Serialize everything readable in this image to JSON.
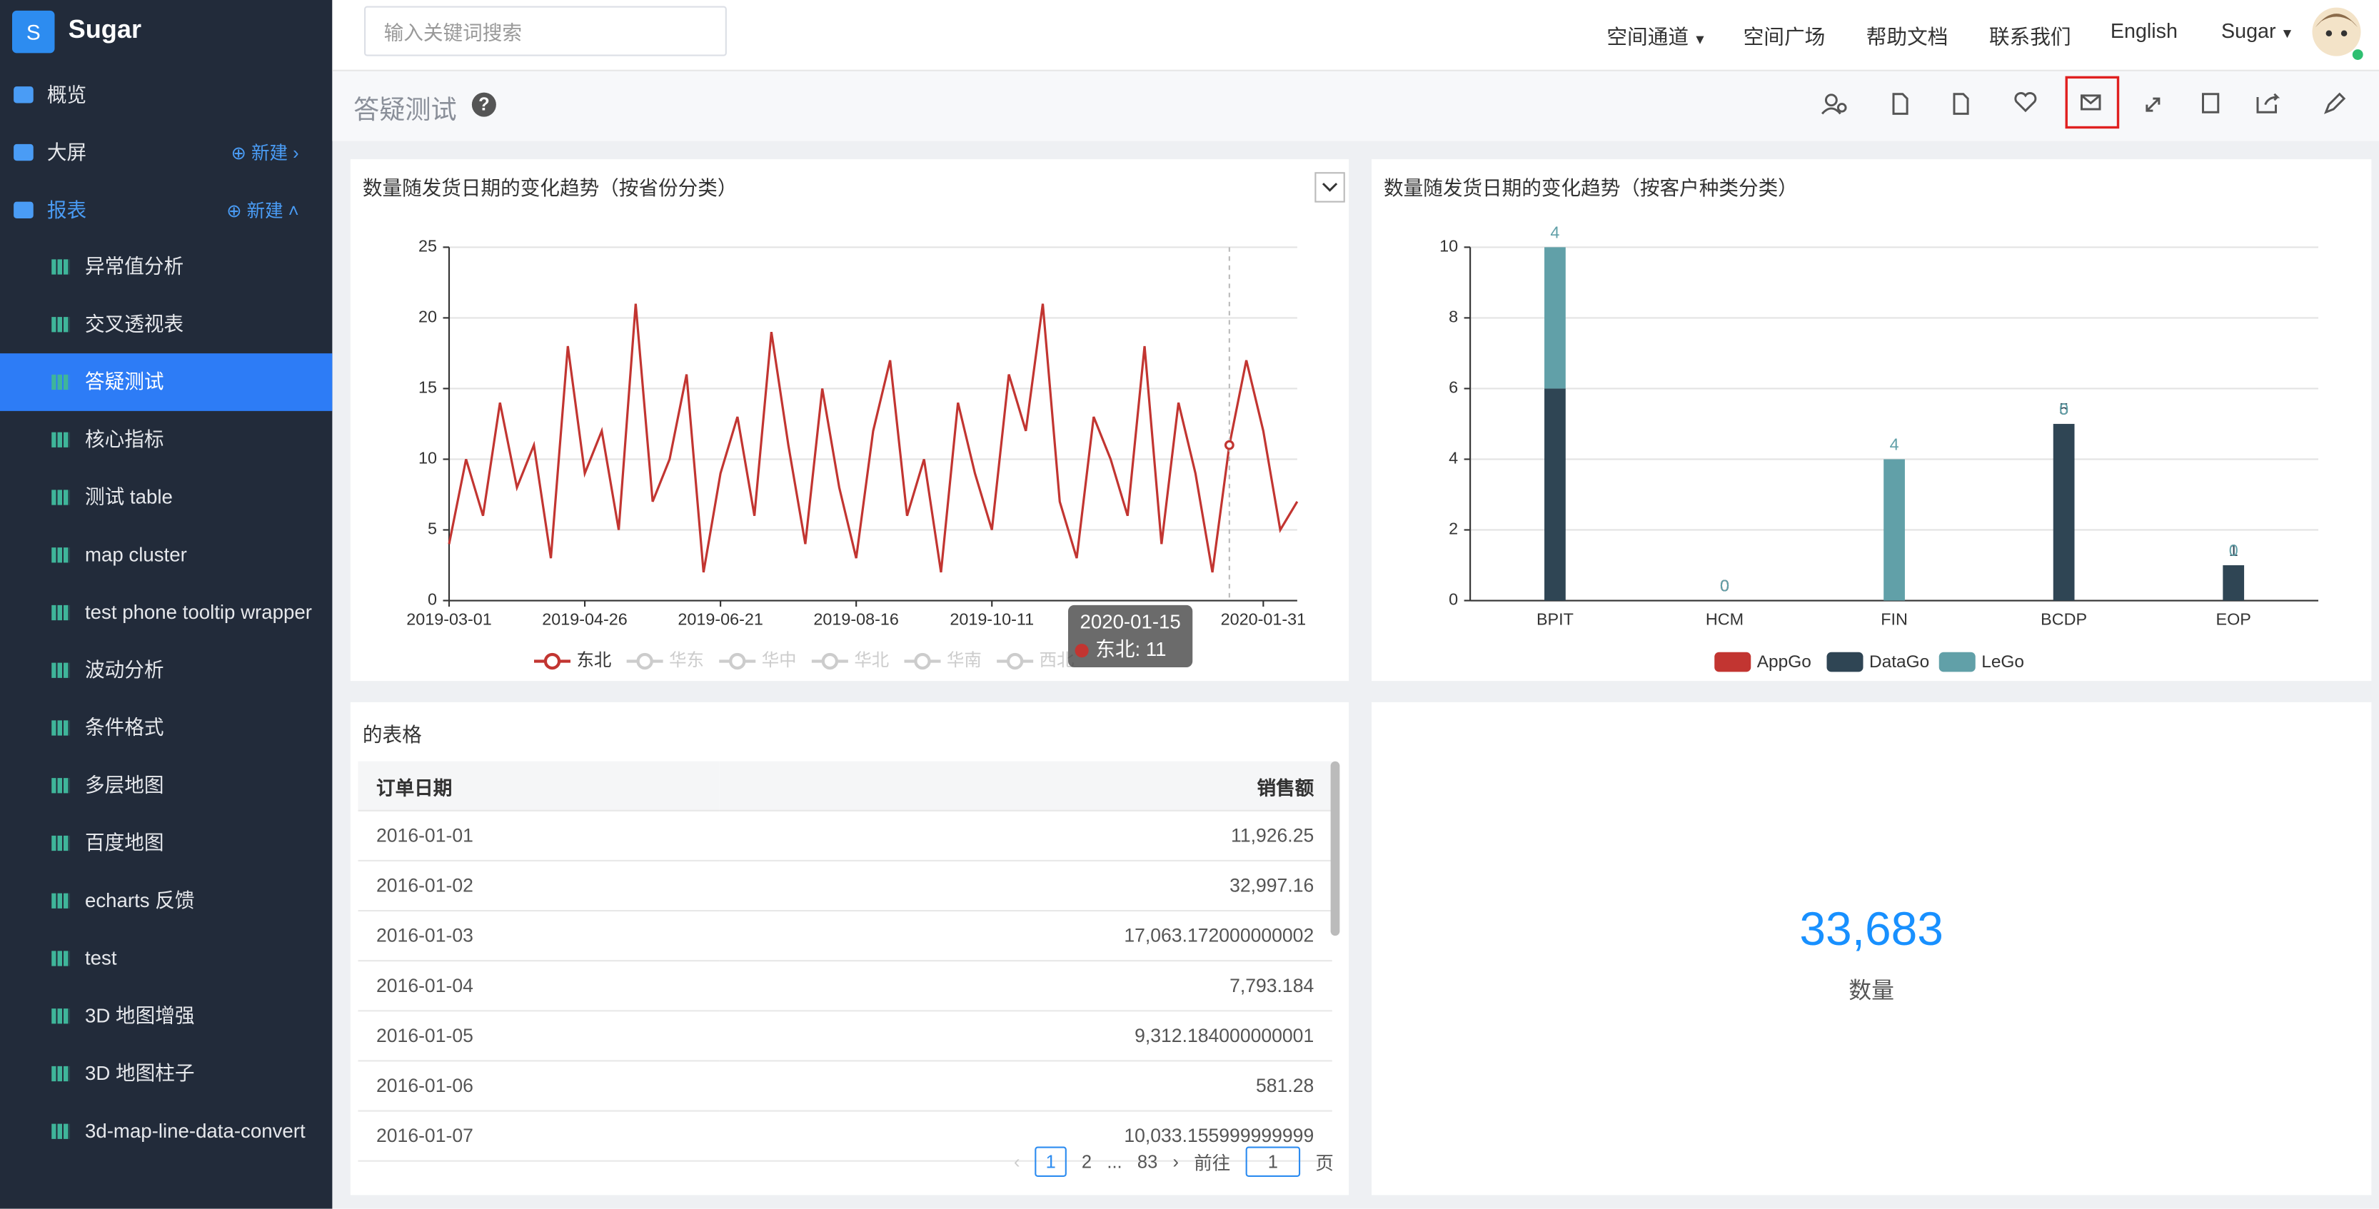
{
  "header": {
    "brand_letter": "S",
    "brand": "Sugar",
    "search_placeholder": "输入关键词搜索",
    "nav": [
      "空间通道",
      "空间广场",
      "帮助文档",
      "联系我们",
      "English",
      "Sugar"
    ]
  },
  "sidebar": {
    "top": [
      "概览",
      "大屏",
      "报表"
    ],
    "new_actions": [
      "新建",
      "新建"
    ],
    "reports": [
      "异常值分析",
      "交叉透视表",
      "答疑测试",
      "核心指标",
      "测试 table",
      "map cluster",
      "test phone tooltip wrapper",
      "波动分析",
      "条件格式",
      "多层地图",
      "百度地图",
      "echarts 反馈",
      "test",
      "3D 地图增强",
      "3D 地图柱子",
      "3d-map-line-data-convert"
    ]
  },
  "toolbar": {
    "title": "答疑测试"
  },
  "chart_data": [
    {
      "type": "line",
      "title": "数量随发货日期的变化趋势（按省份分类）",
      "categories": [
        "2019-03-01",
        null,
        null,
        null,
        null,
        null,
        null,
        null,
        "2019-04-26",
        null,
        null,
        null,
        null,
        null,
        null,
        null,
        "2019-06-21",
        null,
        null,
        null,
        null,
        null,
        null,
        null,
        "2019-08-16",
        null,
        null,
        null,
        null,
        null,
        null,
        null,
        "2019-10-11",
        null,
        null,
        null,
        null,
        null,
        null,
        null,
        null,
        null,
        null,
        null,
        null,
        null,
        null,
        null,
        "2020-01-31",
        null,
        null
      ],
      "series": [
        {
          "name": "东北",
          "color": "#c23531",
          "values": [
            4,
            10,
            6,
            14,
            8,
            11,
            3,
            18,
            9,
            12,
            5,
            21,
            7,
            10,
            16,
            2,
            9,
            13,
            6,
            19,
            11,
            4,
            15,
            8,
            3,
            12,
            17,
            6,
            10,
            2,
            14,
            9,
            5,
            16,
            12,
            21,
            7,
            3,
            13,
            10,
            6,
            18,
            4,
            14,
            9,
            2,
            11,
            17,
            12,
            5,
            7
          ]
        },
        {
          "name": "华东",
          "visible": false
        },
        {
          "name": "华中",
          "visible": false
        },
        {
          "name": "华北",
          "visible": false
        },
        {
          "name": "华南",
          "visible": false
        },
        {
          "name": "西北",
          "visible": false
        }
      ],
      "ylim": [
        0,
        25
      ],
      "yticks": [
        0,
        5,
        10,
        15,
        20,
        25
      ],
      "grid": true,
      "legend": "bottom",
      "tooltip": {
        "date": "2020-01-15",
        "label": "东北: 11"
      }
    },
    {
      "type": "bar",
      "stacked": true,
      "title": "数量随发货日期的变化趋势（按客户种类分类）",
      "categories": [
        "BPIT",
        "HCM",
        "FIN",
        "BCDP",
        "EOP"
      ],
      "series": [
        {
          "name": "AppGo",
          "color": "#c23531",
          "values": [
            0,
            0,
            0,
            0,
            0
          ]
        },
        {
          "name": "DataGo",
          "color": "#2f4554",
          "values": [
            6,
            0,
            0,
            5,
            1
          ]
        },
        {
          "name": "LeGo",
          "color": "#61a0a8",
          "values": [
            4,
            0,
            4,
            0,
            0
          ]
        }
      ],
      "ylim": [
        0,
        10
      ],
      "yticks": [
        0,
        2,
        4,
        6,
        8,
        10
      ],
      "grid": true,
      "legend": "bottom"
    }
  ],
  "table": {
    "title": "的表格",
    "columns": [
      "订单日期",
      "销售额"
    ],
    "rows": [
      [
        "2016-01-01",
        "11,926.25"
      ],
      [
        "2016-01-02",
        "32,997.16"
      ],
      [
        "2016-01-03",
        "17,063.172000000002"
      ],
      [
        "2016-01-04",
        "7,793.184"
      ],
      [
        "2016-01-05",
        "9,312.184000000001"
      ],
      [
        "2016-01-06",
        "581.28"
      ],
      [
        "2016-01-07",
        "10,033.155999999999"
      ]
    ],
    "pagination": {
      "pages": [
        1,
        2,
        "...",
        83
      ],
      "goto": "前往",
      "input": 1,
      "unit": "页"
    }
  },
  "kpi": {
    "value": "33,683",
    "label": "数量"
  }
}
